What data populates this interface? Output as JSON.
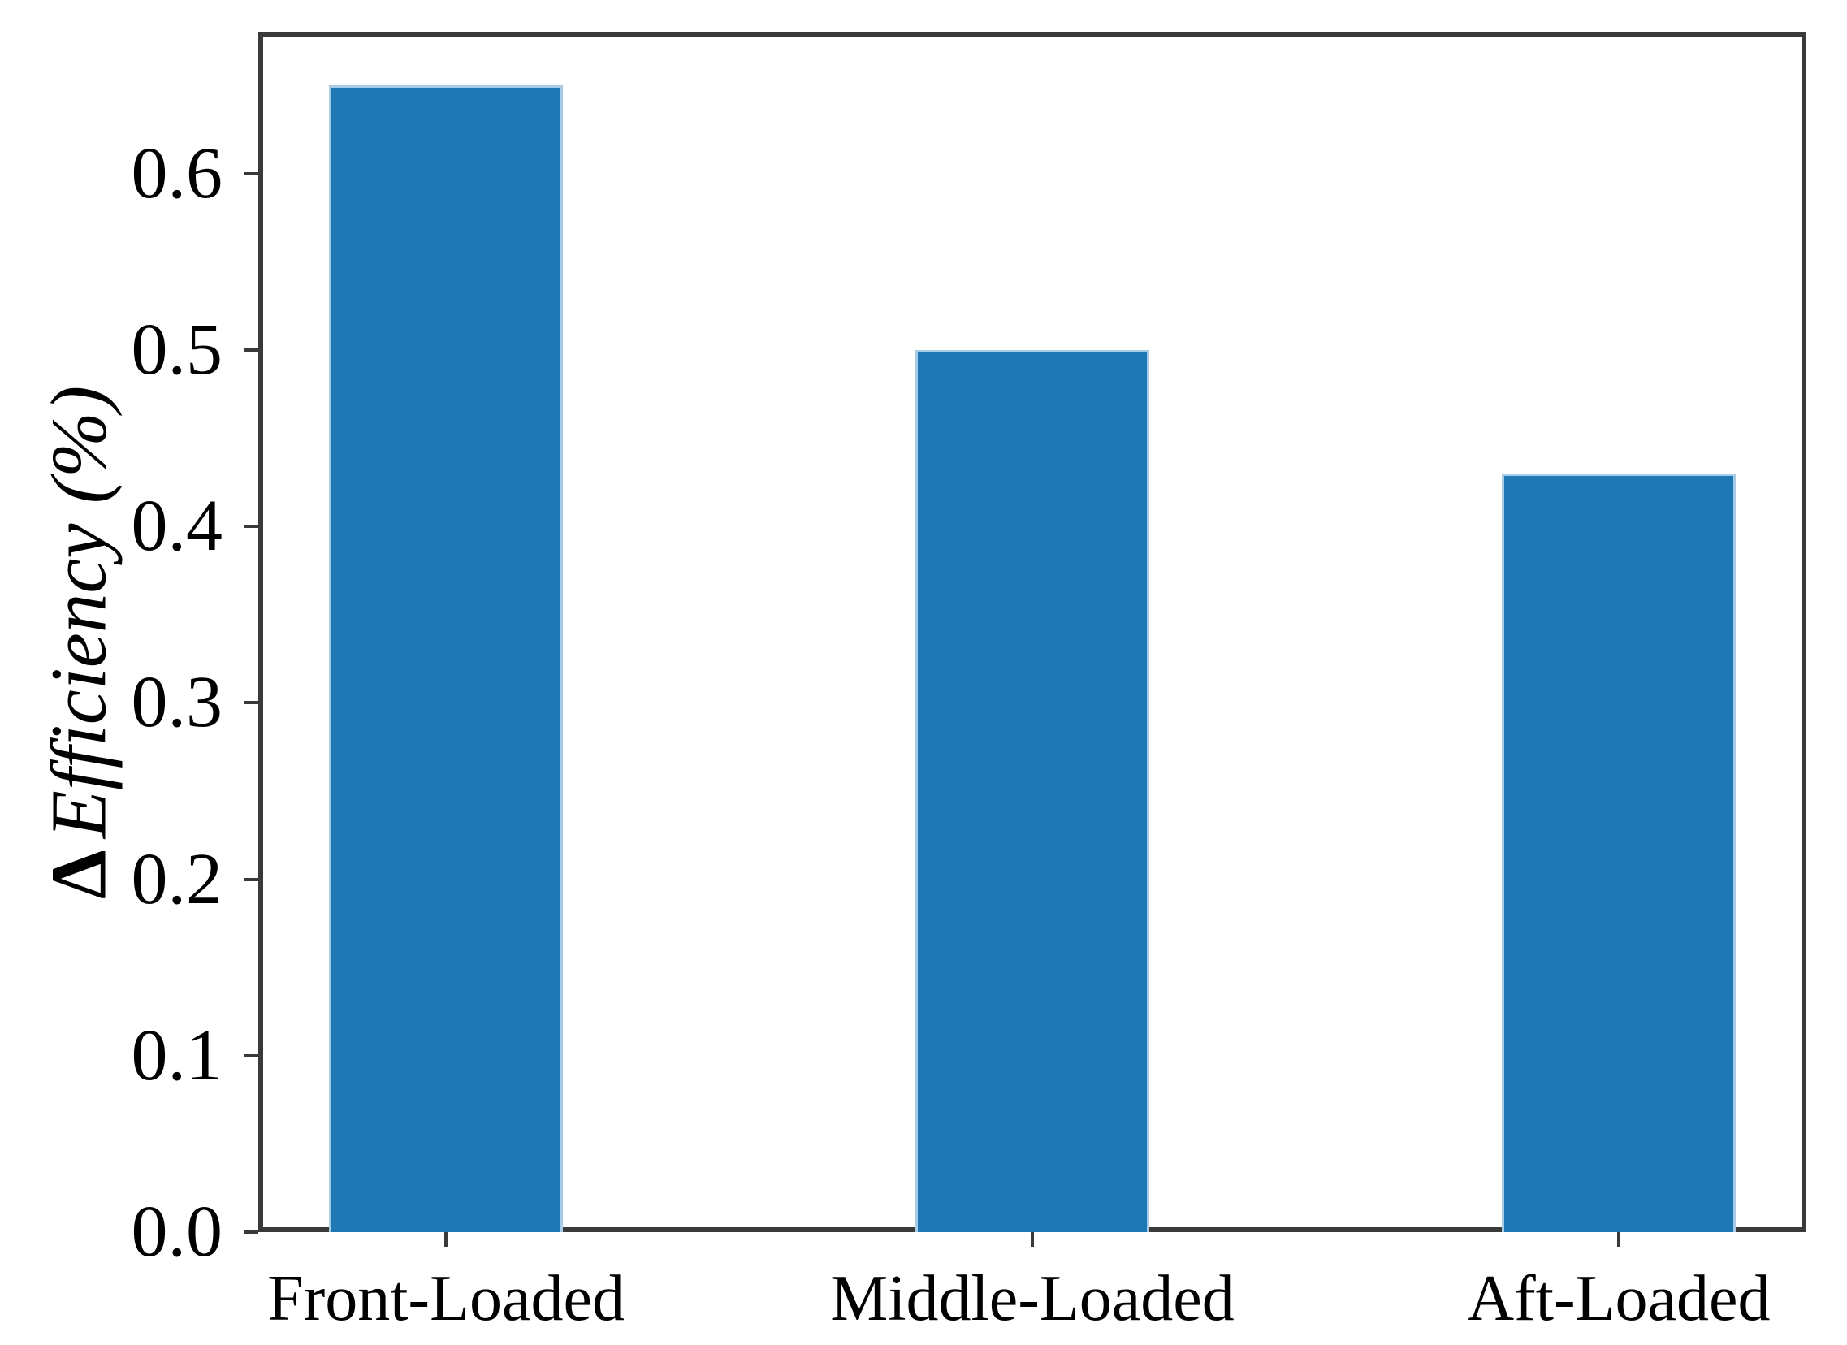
{
  "chart_data": {
    "type": "bar",
    "categories": [
      "Front-Loaded",
      "Middle-Loaded",
      "Aft-Loaded"
    ],
    "values": [
      0.65,
      0.5,
      0.43
    ],
    "title": "",
    "xlabel": "",
    "ylabel": "Δ Efficiency (%)",
    "ylabel_delta": "Δ",
    "ylabel_text": "Efficiency (%)",
    "ylim": [
      0,
      0.68
    ],
    "xlim": [
      -0.32,
      2.32
    ],
    "bar_width": 0.4,
    "yticks": [
      0.0,
      0.1,
      0.2,
      0.3,
      0.4,
      0.5,
      0.6
    ],
    "ytick_labels": [
      "0.0",
      "0.1",
      "0.2",
      "0.3",
      "0.4",
      "0.5",
      "0.6"
    ],
    "grid": false,
    "legend_position": "none",
    "colors": {
      "bar_fill": "#1f77b4",
      "bar_edge": "#a9cce6",
      "spine": "#3a3a3a",
      "text": "#000000",
      "background": "#ffffff"
    }
  }
}
